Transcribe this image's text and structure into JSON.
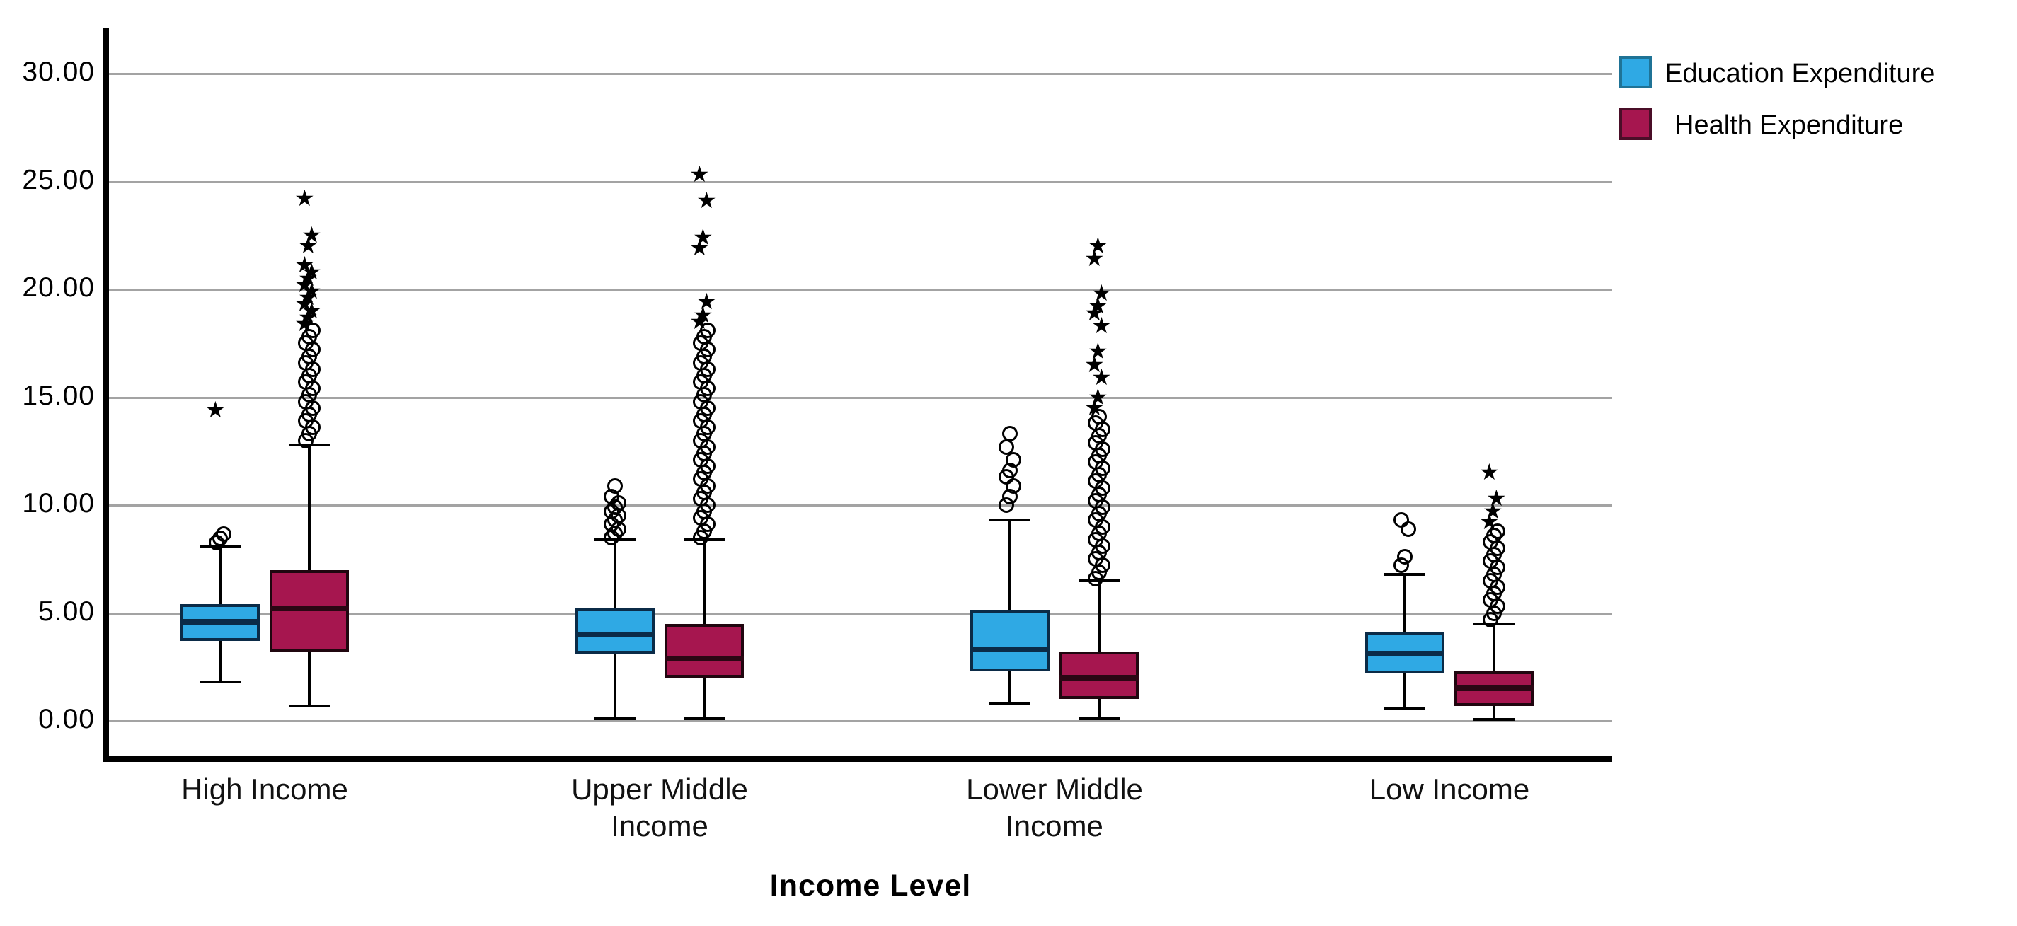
{
  "x_axis": {
    "title": "Income Level",
    "categories": [
      {
        "label": "High Income",
        "label_lines": [
          "High Income"
        ]
      },
      {
        "label": "Upper Middle Income",
        "label_lines": [
          "Upper Middle",
          "Income"
        ]
      },
      {
        "label": "Lower Middle Income",
        "label_lines": [
          "Lower Middle",
          "Income"
        ]
      },
      {
        "label": "Low Income",
        "label_lines": [
          "Low Income"
        ]
      }
    ]
  },
  "y_axis": {
    "ticks": [
      {
        "label": "30.00",
        "value": 30
      },
      {
        "label": "25.00",
        "value": 25
      },
      {
        "label": "20.00",
        "value": 20
      },
      {
        "label": "15.00",
        "value": 15
      },
      {
        "label": "10.00",
        "value": 10
      },
      {
        "label": "5.00",
        "value": 5
      },
      {
        "label": "0.00",
        "value": 0
      }
    ]
  },
  "legend": {
    "items": [
      {
        "label": "Education Expenditure",
        "fill": "#2FA9E4",
        "border": "#1F7396"
      },
      {
        "label": "Health Expenditure",
        "fill": "#A6164F",
        "border": "#4A0E28"
      }
    ]
  },
  "colors": {
    "education_fill": "#2FA9E4",
    "education_border": "#0B2B47",
    "education_median": "#0B2B47",
    "health_fill": "#A6164F",
    "health_border": "#20060F",
    "health_median": "#2B0714",
    "gridline": "#a3a3a3",
    "marker": "#000000"
  },
  "chart_data": {
    "type": "boxplot",
    "title": "",
    "xlabel": "Income Level",
    "ylabel": "",
    "ylim": [
      0,
      30
    ],
    "grid": true,
    "legend_position": "top-right",
    "categories": [
      "High Income",
      "Upper Middle Income",
      "Lower Middle Income",
      "Low Income"
    ],
    "series": [
      {
        "name": "Education Expenditure",
        "boxes": [
          {
            "category": "High Income",
            "q1": 3.7,
            "median": 4.6,
            "q3": 5.4,
            "whisker_low": 1.8,
            "whisker_high": 8.1,
            "outliers": [
              8.25,
              8.45,
              8.65
            ],
            "extremes": [
              14.4
            ]
          },
          {
            "category": "Upper Middle Income",
            "q1": 3.1,
            "median": 4.0,
            "q3": 5.2,
            "whisker_low": 0.1,
            "whisker_high": 8.4,
            "outliers": [
              8.5,
              8.7,
              8.9,
              9.1,
              9.3,
              9.5,
              9.7,
              9.9,
              10.1,
              10.4,
              10.9
            ],
            "extremes": []
          },
          {
            "category": "Lower Middle Income",
            "q1": 2.3,
            "median": 3.3,
            "q3": 5.1,
            "whisker_low": 0.8,
            "whisker_high": 9.3,
            "outliers": [
              10.0,
              10.4,
              10.9,
              11.3,
              11.6,
              12.1,
              12.7,
              13.3
            ],
            "extremes": []
          },
          {
            "category": "Low Income",
            "q1": 2.2,
            "median": 3.1,
            "q3": 4.1,
            "whisker_low": 0.6,
            "whisker_high": 6.8,
            "outliers": [
              7.2,
              7.6,
              8.9,
              9.3
            ],
            "extremes": []
          }
        ]
      },
      {
        "name": "Health Expenditure",
        "boxes": [
          {
            "category": "High Income",
            "q1": 3.2,
            "median": 5.2,
            "q3": 7.0,
            "whisker_low": 0.7,
            "whisker_high": 12.8,
            "outliers": [
              13.0,
              13.3,
              13.6,
              13.9,
              14.2,
              14.5,
              14.8,
              15.1,
              15.4,
              15.7,
              16.0,
              16.3,
              16.6,
              16.9,
              17.2,
              17.5,
              17.8,
              18.1
            ],
            "extremes": [
              18.4,
              18.7,
              19.0,
              19.3,
              19.6,
              19.9,
              20.2,
              20.5,
              20.8,
              21.1,
              22.0,
              22.5,
              24.2
            ]
          },
          {
            "category": "Upper Middle Income",
            "q1": 2.0,
            "median": 2.9,
            "q3": 4.5,
            "whisker_low": 0.1,
            "whisker_high": 8.4,
            "outliers": [
              8.5,
              8.8,
              9.1,
              9.4,
              9.7,
              10.0,
              10.3,
              10.6,
              10.9,
              11.2,
              11.5,
              11.8,
              12.1,
              12.4,
              12.7,
              13.0,
              13.3,
              13.6,
              13.9,
              14.2,
              14.5,
              14.8,
              15.1,
              15.4,
              15.7,
              16.0,
              16.3,
              16.6,
              16.9,
              17.2,
              17.5,
              17.8,
              18.1
            ],
            "extremes": [
              18.5,
              18.8,
              19.4,
              21.9,
              22.4,
              24.1,
              25.3
            ]
          },
          {
            "category": "Lower Middle Income",
            "q1": 1.0,
            "median": 2.0,
            "q3": 3.2,
            "whisker_low": 0.1,
            "whisker_high": 6.5,
            "outliers": [
              6.6,
              6.9,
              7.2,
              7.5,
              7.8,
              8.1,
              8.4,
              8.7,
              9.0,
              9.3,
              9.6,
              9.9,
              10.2,
              10.5,
              10.8,
              11.1,
              11.4,
              11.7,
              12.0,
              12.3,
              12.6,
              12.9,
              13.2,
              13.5,
              13.8,
              14.1
            ],
            "extremes": [
              14.5,
              15.0,
              15.9,
              16.5,
              17.1,
              18.3,
              18.9,
              19.2,
              19.8,
              21.4,
              22.0
            ]
          },
          {
            "category": "Low Income",
            "q1": 0.7,
            "median": 1.5,
            "q3": 2.3,
            "whisker_low": 0.05,
            "whisker_high": 4.5,
            "outliers": [
              4.7,
              5.0,
              5.3,
              5.6,
              5.9,
              6.2,
              6.5,
              6.8,
              7.1,
              7.4,
              7.7,
              8.0,
              8.3,
              8.6,
              8.8
            ],
            "extremes": [
              9.2,
              9.7,
              10.3,
              11.5
            ]
          }
        ]
      }
    ]
  }
}
